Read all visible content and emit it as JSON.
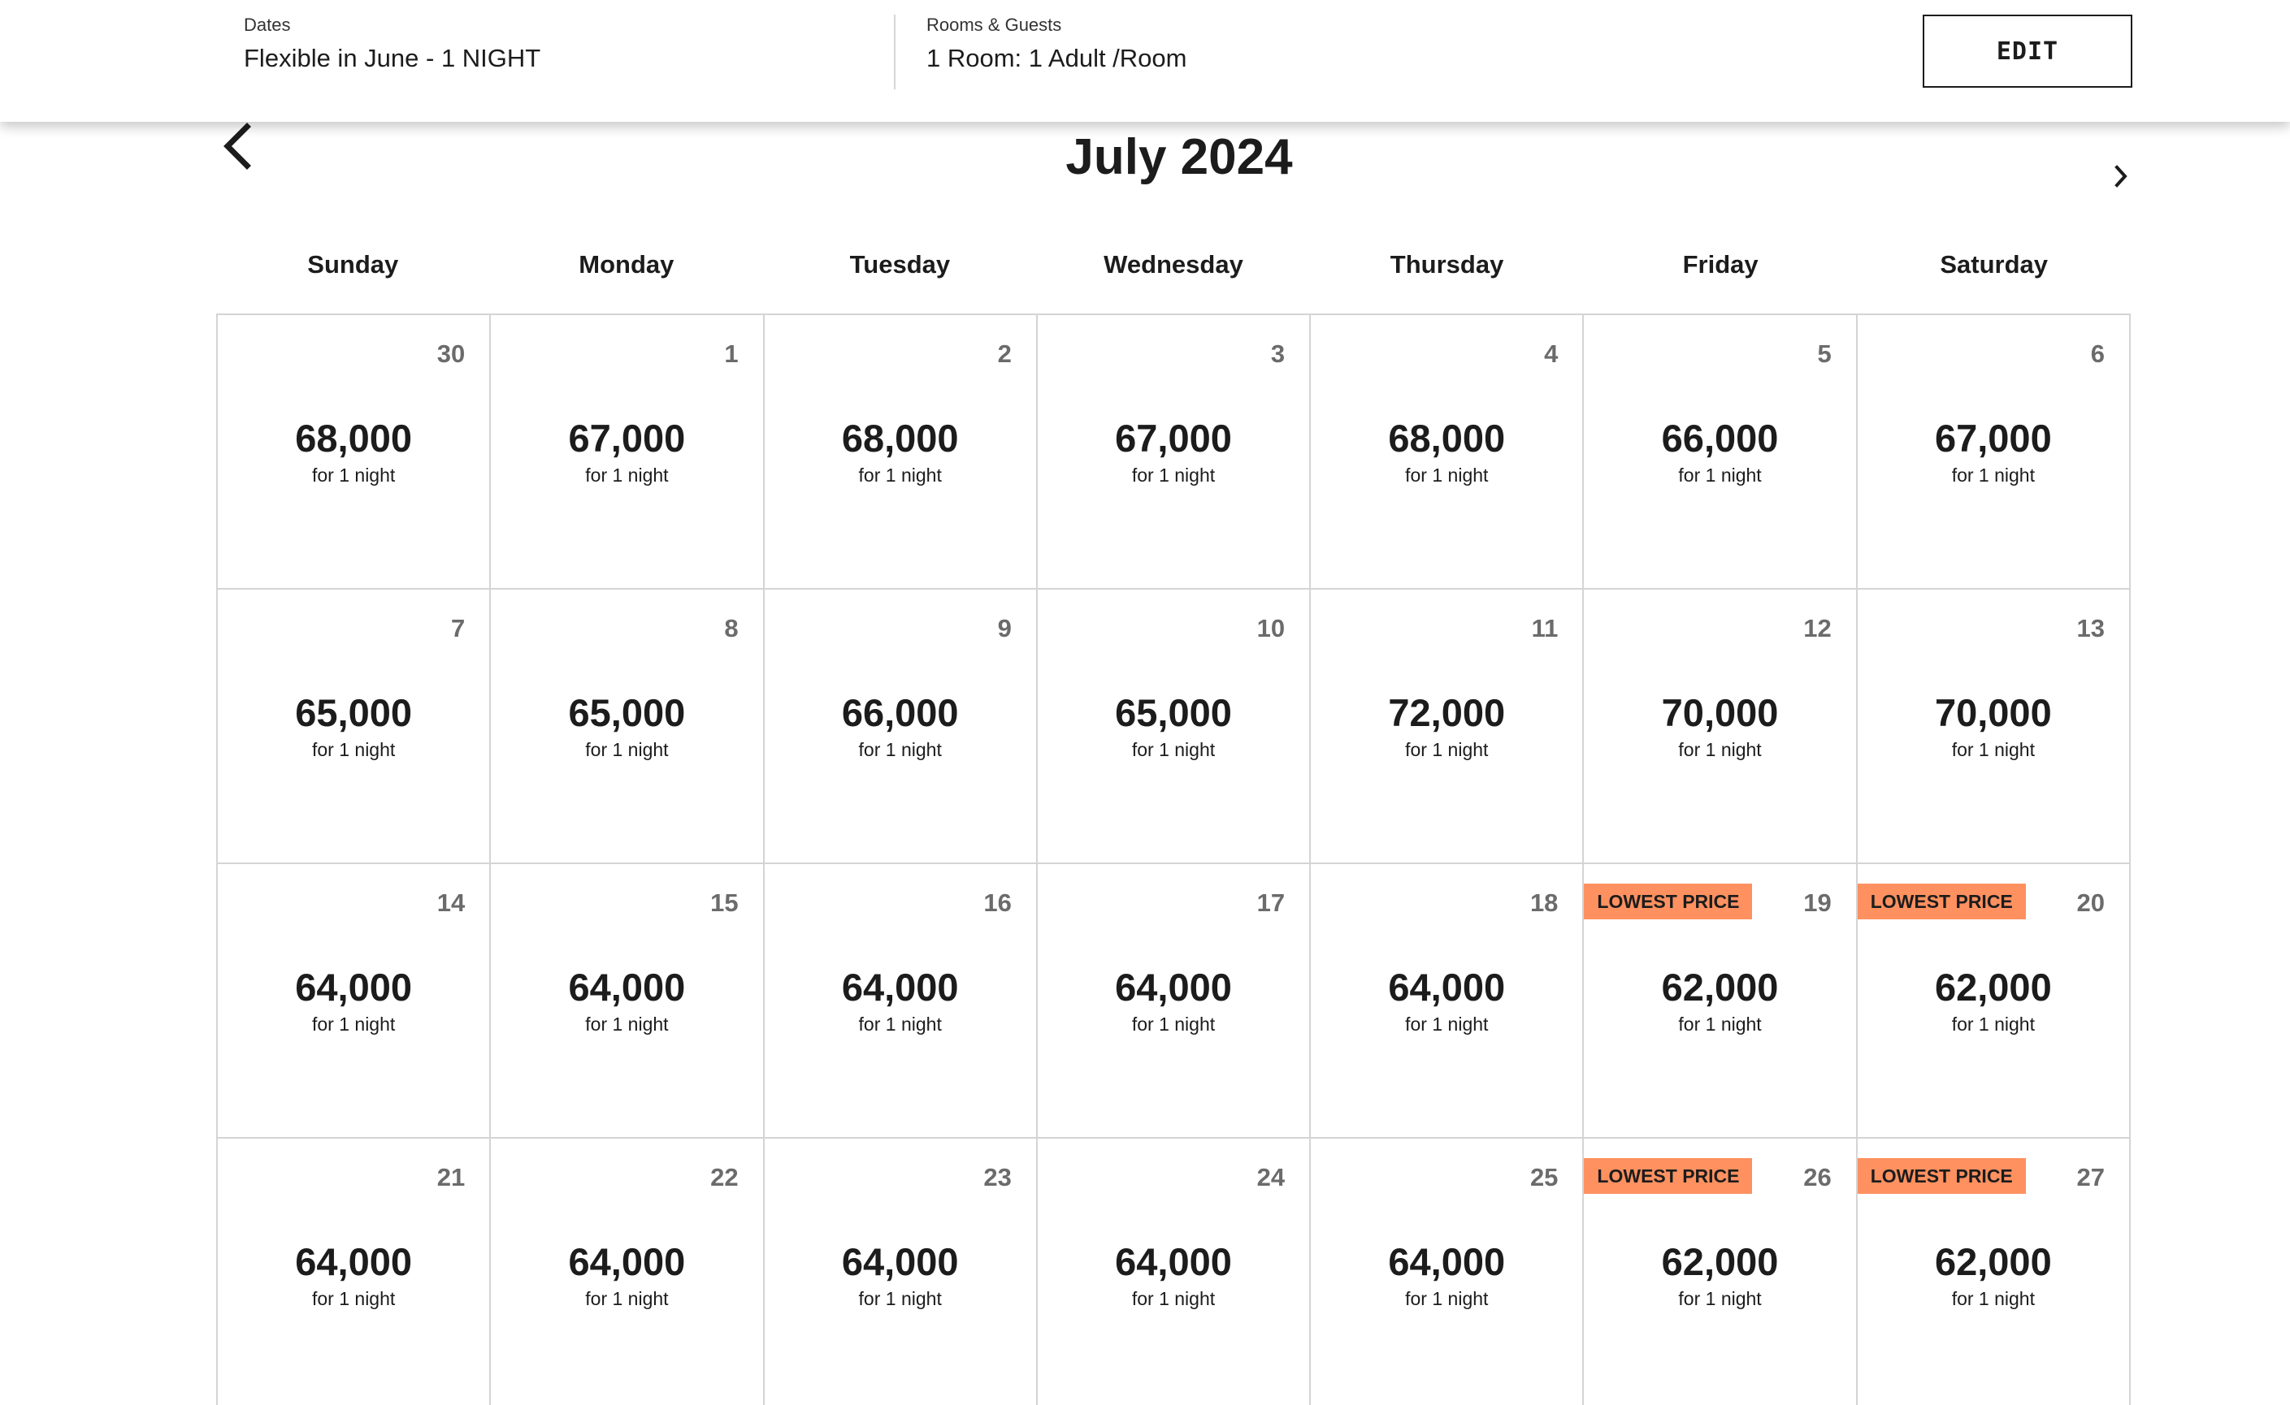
{
  "search_summary": {
    "dates_label": "Dates",
    "dates_value": "Flexible in June - 1 NIGHT",
    "rooms_label": "Rooms & Guests",
    "rooms_value": "1 Room: 1 Adult /Room",
    "edit_label": "EDIT"
  },
  "calendar": {
    "month_title": "July 2024",
    "prev_icon": "chevron-left-icon",
    "next_icon": "chevron-right-icon",
    "weekdays": [
      "Sunday",
      "Monday",
      "Tuesday",
      "Wednesday",
      "Thursday",
      "Friday",
      "Saturday"
    ],
    "badge_color": "#ff9160",
    "days": [
      {
        "day": "30",
        "price": "68,000",
        "note": "for 1 night",
        "badge": ""
      },
      {
        "day": "1",
        "price": "67,000",
        "note": "for 1 night",
        "badge": ""
      },
      {
        "day": "2",
        "price": "68,000",
        "note": "for 1 night",
        "badge": ""
      },
      {
        "day": "3",
        "price": "67,000",
        "note": "for 1 night",
        "badge": ""
      },
      {
        "day": "4",
        "price": "68,000",
        "note": "for 1 night",
        "badge": ""
      },
      {
        "day": "5",
        "price": "66,000",
        "note": "for 1 night",
        "badge": ""
      },
      {
        "day": "6",
        "price": "67,000",
        "note": "for 1 night",
        "badge": ""
      },
      {
        "day": "7",
        "price": "65,000",
        "note": "for 1 night",
        "badge": ""
      },
      {
        "day": "8",
        "price": "65,000",
        "note": "for 1 night",
        "badge": ""
      },
      {
        "day": "9",
        "price": "66,000",
        "note": "for 1 night",
        "badge": ""
      },
      {
        "day": "10",
        "price": "65,000",
        "note": "for 1 night",
        "badge": ""
      },
      {
        "day": "11",
        "price": "72,000",
        "note": "for 1 night",
        "badge": ""
      },
      {
        "day": "12",
        "price": "70,000",
        "note": "for 1 night",
        "badge": ""
      },
      {
        "day": "13",
        "price": "70,000",
        "note": "for 1 night",
        "badge": ""
      },
      {
        "day": "14",
        "price": "64,000",
        "note": "for 1 night",
        "badge": ""
      },
      {
        "day": "15",
        "price": "64,000",
        "note": "for 1 night",
        "badge": ""
      },
      {
        "day": "16",
        "price": "64,000",
        "note": "for 1 night",
        "badge": ""
      },
      {
        "day": "17",
        "price": "64,000",
        "note": "for 1 night",
        "badge": ""
      },
      {
        "day": "18",
        "price": "64,000",
        "note": "for 1 night",
        "badge": ""
      },
      {
        "day": "19",
        "price": "62,000",
        "note": "for 1 night",
        "badge": "LOWEST PRICE"
      },
      {
        "day": "20",
        "price": "62,000",
        "note": "for 1 night",
        "badge": "LOWEST PRICE"
      },
      {
        "day": "21",
        "price": "64,000",
        "note": "for 1 night",
        "badge": ""
      },
      {
        "day": "22",
        "price": "64,000",
        "note": "for 1 night",
        "badge": ""
      },
      {
        "day": "23",
        "price": "64,000",
        "note": "for 1 night",
        "badge": ""
      },
      {
        "day": "24",
        "price": "64,000",
        "note": "for 1 night",
        "badge": ""
      },
      {
        "day": "25",
        "price": "64,000",
        "note": "for 1 night",
        "badge": ""
      },
      {
        "day": "26",
        "price": "62,000",
        "note": "for 1 night",
        "badge": "LOWEST PRICE"
      },
      {
        "day": "27",
        "price": "62,000",
        "note": "for 1 night",
        "badge": "LOWEST PRICE"
      }
    ]
  }
}
